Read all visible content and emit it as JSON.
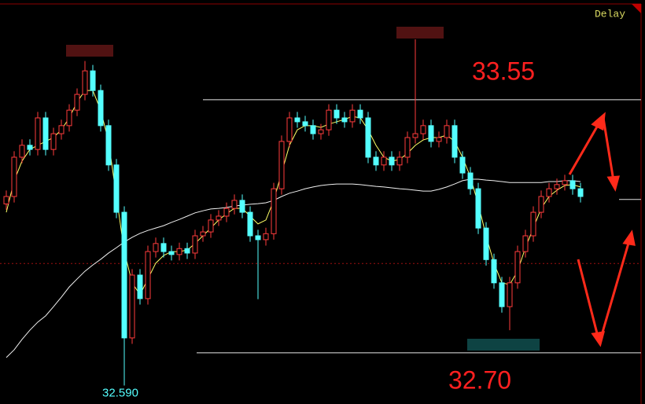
{
  "chart_data": {
    "type": "candlestick",
    "status": "Delay",
    "ylim": [
      32.528,
      33.885
    ],
    "up_color": "#ff3c3c",
    "down_color": "#54ffff",
    "open": [
      33.2,
      33.225,
      33.357,
      33.397,
      33.383,
      33.489,
      33.383,
      33.436,
      33.463,
      33.515,
      33.568,
      33.647,
      33.581,
      33.463,
      33.331,
      33.172,
      32.75,
      32.961,
      32.882,
      33.04,
      33.067,
      33.04,
      33.03,
      33.05,
      33.035,
      33.093,
      33.106,
      33.146,
      33.159,
      33.185,
      33.212,
      33.172,
      33.093,
      33.08,
      33.1,
      33.251,
      33.41,
      33.489,
      33.476,
      33.463,
      33.436,
      33.449,
      33.515,
      33.489,
      33.476,
      33.515,
      33.489,
      33.357,
      33.331,
      33.357,
      33.331,
      33.357,
      33.423,
      33.436,
      33.463,
      33.41,
      33.423,
      33.463,
      33.357,
      33.304,
      33.251,
      33.119,
      33.013,
      32.935,
      32.855,
      32.935,
      33.04,
      33.093,
      33.172,
      33.225,
      33.251,
      33.265,
      33.278,
      33.251
    ],
    "high": [
      33.245,
      33.377,
      33.417,
      33.417,
      33.509,
      33.509,
      33.456,
      33.483,
      33.535,
      33.588,
      33.68,
      33.667,
      33.601,
      33.483,
      33.351,
      33.192,
      32.981,
      32.981,
      33.06,
      33.087,
      33.087,
      33.06,
      33.07,
      33.07,
      33.113,
      33.126,
      33.166,
      33.179,
      33.205,
      33.232,
      33.232,
      33.192,
      33.113,
      33.12,
      33.271,
      33.43,
      33.509,
      33.509,
      33.496,
      33.483,
      33.469,
      33.535,
      33.535,
      33.509,
      33.535,
      33.535,
      33.509,
      33.377,
      33.377,
      33.377,
      33.377,
      33.443,
      33.753,
      33.483,
      33.483,
      33.443,
      33.483,
      33.483,
      33.377,
      33.324,
      33.271,
      33.139,
      33.033,
      32.955,
      32.955,
      33.06,
      33.113,
      33.192,
      33.245,
      33.271,
      33.285,
      33.298,
      33.298,
      33.271
    ],
    "low": [
      33.18,
      33.205,
      33.337,
      33.363,
      33.363,
      33.363,
      33.363,
      33.416,
      33.443,
      33.495,
      33.548,
      33.561,
      33.443,
      33.311,
      33.152,
      32.59,
      32.73,
      32.862,
      32.862,
      33.02,
      33.02,
      33.01,
      33.01,
      33.015,
      33.015,
      33.073,
      33.086,
      33.126,
      33.139,
      33.165,
      33.152,
      33.073,
      32.88,
      33.06,
      33.08,
      33.231,
      33.39,
      33.456,
      33.443,
      33.416,
      33.416,
      33.429,
      33.469,
      33.456,
      33.456,
      33.469,
      33.337,
      33.311,
      33.311,
      33.311,
      33.311,
      33.337,
      33.403,
      33.416,
      33.39,
      33.39,
      33.403,
      33.337,
      33.284,
      33.231,
      33.099,
      32.993,
      32.915,
      32.835,
      32.776,
      32.915,
      33.02,
      33.073,
      33.152,
      33.205,
      33.231,
      33.245,
      33.231,
      33.205
    ],
    "close": [
      33.225,
      33.357,
      33.397,
      33.383,
      33.489,
      33.383,
      33.436,
      33.463,
      33.515,
      33.568,
      33.647,
      33.581,
      33.463,
      33.331,
      33.172,
      32.75,
      32.961,
      32.882,
      33.04,
      33.067,
      33.04,
      33.03,
      33.05,
      33.035,
      33.093,
      33.106,
      33.146,
      33.159,
      33.185,
      33.212,
      33.172,
      33.093,
      33.08,
      33.1,
      33.251,
      33.41,
      33.489,
      33.476,
      33.463,
      33.436,
      33.449,
      33.515,
      33.489,
      33.476,
      33.515,
      33.489,
      33.357,
      33.331,
      33.357,
      33.331,
      33.357,
      33.423,
      33.436,
      33.463,
      33.41,
      33.423,
      33.463,
      33.357,
      33.304,
      33.251,
      33.119,
      33.013,
      32.935,
      32.855,
      32.935,
      33.04,
      33.093,
      33.172,
      33.225,
      33.251,
      33.265,
      33.278,
      33.251,
      33.225
    ],
    "series": [
      {
        "color": "#ffff66",
        "values": [
          33.172,
          33.278,
          33.344,
          33.383,
          33.397,
          33.41,
          33.423,
          33.449,
          33.489,
          33.542,
          33.581,
          33.581,
          33.515,
          33.41,
          33.225,
          33.04,
          32.935,
          32.895,
          32.948,
          33.001,
          33.027,
          33.04,
          33.04,
          33.045,
          33.067,
          33.093,
          33.119,
          33.146,
          33.167,
          33.185,
          33.185,
          33.159,
          33.133,
          33.146,
          33.212,
          33.304,
          33.397,
          33.449,
          33.463,
          33.463,
          33.457,
          33.468,
          33.476,
          33.484,
          33.494,
          33.489,
          33.449,
          33.397,
          33.357,
          33.344,
          33.349,
          33.37,
          33.397,
          33.415,
          33.423,
          33.423,
          33.431,
          33.41,
          33.357,
          33.291,
          33.199,
          33.093,
          33.001,
          32.935,
          32.929,
          32.974,
          33.053,
          33.119,
          33.185,
          33.225,
          33.246,
          33.262,
          33.265,
          33.257
        ]
      },
      {
        "color": "#f0f0f0",
        "values": [
          32.684,
          32.71,
          32.745,
          32.776,
          32.803,
          32.824,
          32.855,
          32.887,
          32.921,
          32.948,
          32.974,
          32.995,
          33.014,
          33.035,
          33.053,
          33.072,
          33.088,
          33.101,
          33.111,
          33.119,
          33.127,
          33.138,
          33.148,
          33.159,
          33.17,
          33.177,
          33.183,
          33.185,
          33.188,
          33.193,
          33.196,
          33.199,
          33.201,
          33.204,
          33.212,
          33.225,
          33.236,
          33.243,
          33.251,
          33.257,
          33.262,
          33.265,
          33.267,
          33.267,
          33.267,
          33.265,
          33.262,
          33.259,
          33.257,
          33.254,
          33.251,
          33.249,
          33.246,
          33.243,
          33.243,
          33.249,
          33.257,
          33.267,
          33.278,
          33.283,
          33.283,
          33.28,
          33.278,
          33.275,
          33.272,
          33.272,
          33.272,
          33.272,
          33.272,
          33.275,
          33.275,
          33.278,
          33.278,
          33.275
        ]
      }
    ],
    "levels": [
      33.55,
      {
        "value": 32.7,
        "label": "32.70"
      }
    ],
    "low_label": {
      "value": 32.59,
      "label": "32.590"
    },
    "dashed_level": 33.0,
    "marker_level": 33.215
  }
}
